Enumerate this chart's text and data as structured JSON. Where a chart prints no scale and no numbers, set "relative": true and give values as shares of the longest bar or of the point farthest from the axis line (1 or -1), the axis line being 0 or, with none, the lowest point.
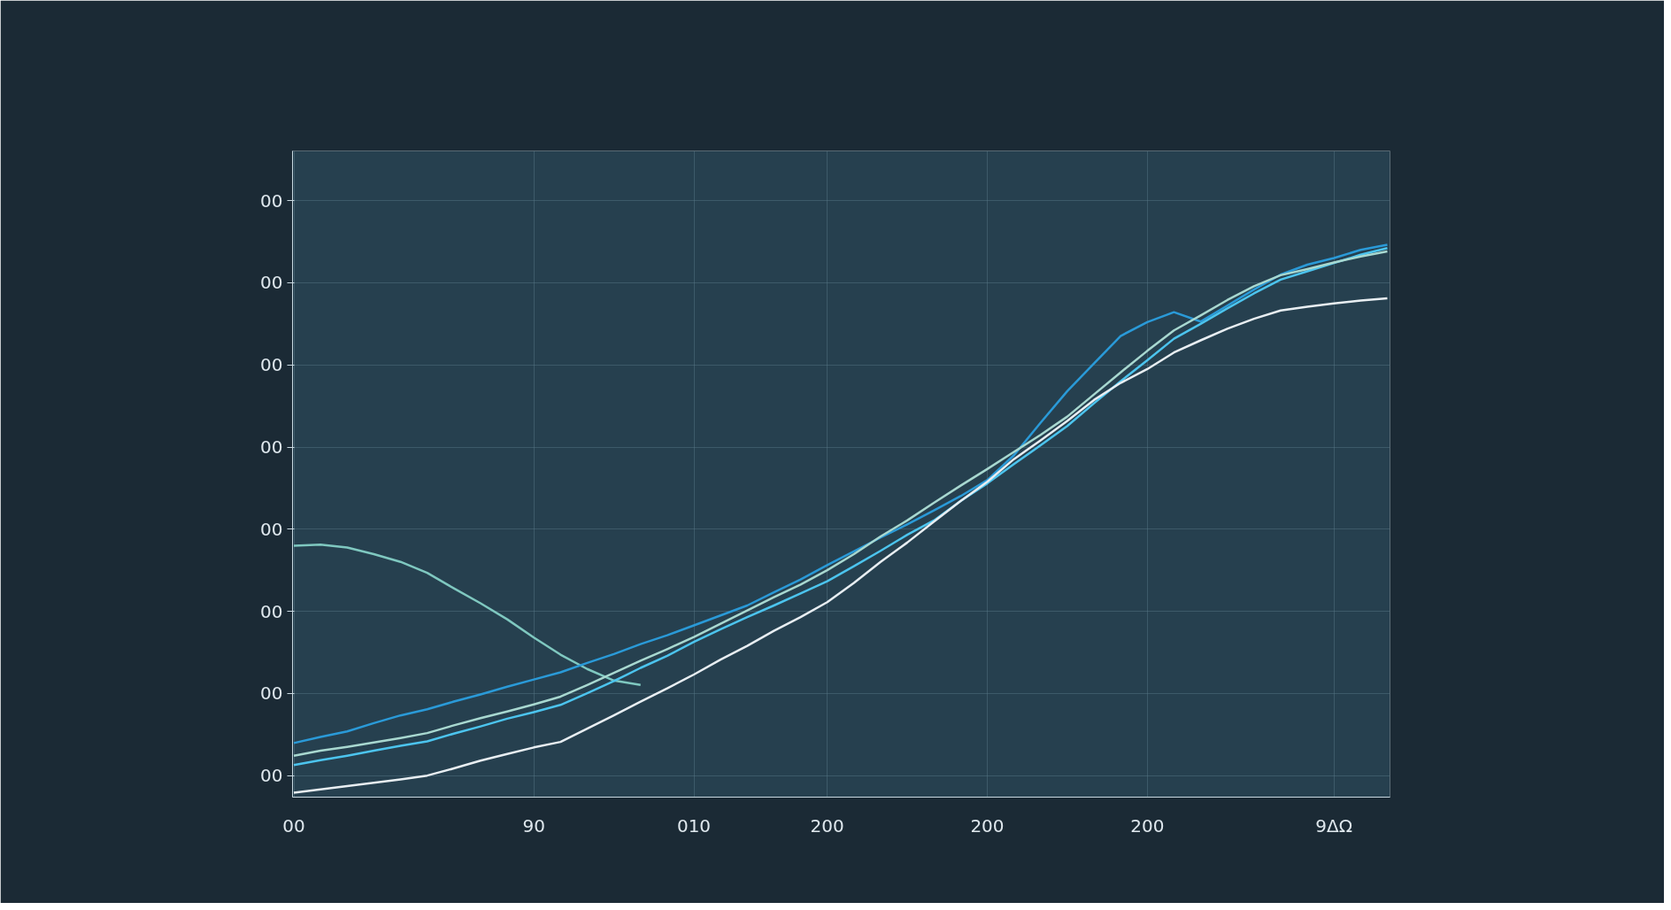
{
  "chart_data": {
    "type": "line",
    "relative": true,
    "categories": [
      "00",
      null,
      null,
      null,
      null,
      null,
      null,
      null,
      null,
      "90",
      null,
      null,
      null,
      null,
      null,
      "010",
      null,
      null,
      null,
      null,
      "200",
      null,
      null,
      null,
      null,
      null,
      "200",
      null,
      null,
      null,
      null,
      null,
      "200",
      null,
      null,
      null,
      null,
      null,
      null,
      "9ΔΩ",
      null,
      null
    ],
    "annotations": [
      "00",
      "00",
      "00",
      "00",
      "00",
      "00",
      "00",
      "00"
    ],
    "grid": true,
    "line_style": "solid",
    "series": [
      {
        "color": "#7fc8c0",
        "values": [
          0.455,
          0.457,
          0.452,
          0.44,
          0.426,
          0.406,
          0.378,
          0.351,
          0.322,
          0.289,
          0.258,
          0.232,
          0.211,
          0.203,
          null,
          null,
          null,
          null,
          null,
          null,
          null,
          null,
          null,
          null,
          null,
          null,
          null,
          null,
          null,
          null,
          null,
          null,
          null,
          null,
          null,
          null,
          null,
          null,
          null,
          null,
          null,
          null
        ]
      },
      {
        "color": "#2a9ad8",
        "values": [
          0.098,
          0.109,
          0.119,
          0.134,
          0.148,
          0.159,
          0.173,
          0.186,
          0.2,
          0.213,
          0.226,
          0.243,
          0.259,
          0.277,
          0.293,
          0.311,
          0.329,
          0.347,
          0.371,
          0.394,
          0.42,
          0.445,
          0.47,
          0.494,
          0.519,
          0.545,
          0.574,
          0.619,
          0.678,
          0.735,
          0.785,
          0.835,
          0.86,
          0.878,
          0.861,
          0.89,
          0.919,
          0.946,
          0.964,
          0.976,
          0.991,
          1.0
        ]
      },
      {
        "color": "#4cc4ee",
        "values": [
          0.058,
          0.067,
          0.075,
          0.084,
          0.093,
          0.101,
          0.115,
          0.128,
          0.142,
          0.154,
          0.167,
          0.188,
          0.21,
          0.234,
          0.256,
          0.281,
          0.304,
          0.326,
          0.347,
          0.369,
          0.391,
          0.418,
          0.446,
          0.475,
          0.501,
          0.536,
          0.568,
          0.603,
          0.637,
          0.672,
          0.713,
          0.753,
          0.791,
          0.83,
          0.857,
          0.885,
          0.912,
          0.937,
          0.952,
          0.967,
          0.982,
          0.994
        ]
      },
      {
        "color": "#a8d8d0",
        "values": [
          0.075,
          0.084,
          0.091,
          0.099,
          0.107,
          0.116,
          0.13,
          0.143,
          0.155,
          0.168,
          0.182,
          0.203,
          0.225,
          0.247,
          0.268,
          0.29,
          0.314,
          0.338,
          0.362,
          0.385,
          0.411,
          0.44,
          0.472,
          0.501,
          0.533,
          0.564,
          0.594,
          0.625,
          0.656,
          0.689,
          0.729,
          0.769,
          0.808,
          0.845,
          0.872,
          0.9,
          0.925,
          0.945,
          0.956,
          0.968,
          0.979,
          0.988
        ]
      },
      {
        "color": "#e8eef2",
        "values": [
          0.008,
          0.014,
          0.02,
          0.026,
          0.032,
          0.039,
          0.052,
          0.066,
          0.078,
          0.09,
          0.1,
          0.124,
          0.148,
          0.173,
          0.197,
          0.222,
          0.249,
          0.274,
          0.301,
          0.326,
          0.353,
          0.388,
          0.426,
          0.461,
          0.499,
          0.536,
          0.571,
          0.612,
          0.646,
          0.681,
          0.719,
          0.75,
          0.775,
          0.805,
          0.827,
          0.848,
          0.866,
          0.881,
          0.888,
          0.894,
          0.899,
          0.903
        ]
      }
    ]
  }
}
